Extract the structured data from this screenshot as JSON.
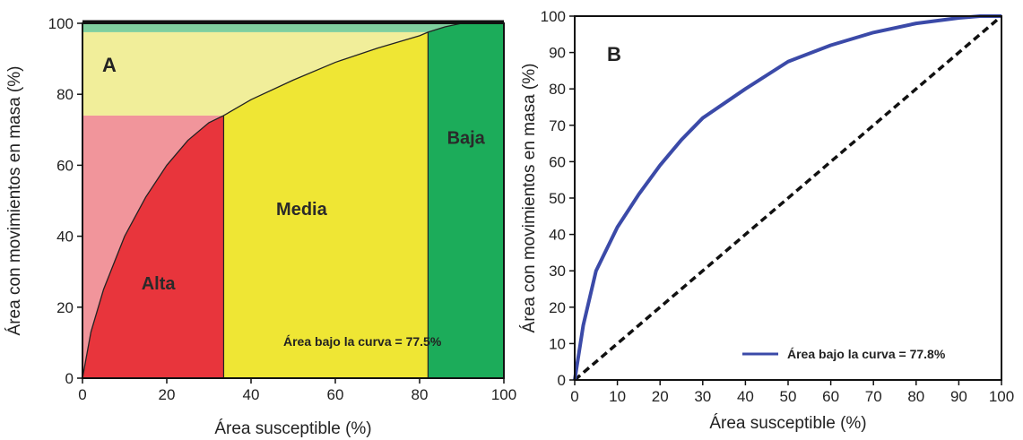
{
  "chart_data": [
    {
      "type": "area",
      "panel_label": "A",
      "xlabel": "Área susceptible (%)",
      "ylabel": "Área con movimientos en masa (%)",
      "xlim": [
        0,
        100
      ],
      "ylim": [
        0,
        100
      ],
      "xticks": [
        0,
        20,
        40,
        60,
        80,
        100
      ],
      "yticks": [
        0,
        20,
        40,
        60,
        80,
        100
      ],
      "curve": {
        "x": [
          0,
          2,
          5,
          10,
          15,
          20,
          25,
          30,
          33.5,
          40,
          50,
          60,
          70,
          80,
          82,
          86,
          90,
          100
        ],
        "y": [
          0,
          13,
          25,
          40,
          51,
          60,
          67,
          72,
          74,
          78.5,
          84,
          89,
          93,
          96.5,
          97.5,
          99,
          100,
          100
        ]
      },
      "zones": [
        {
          "name": "Alta",
          "x_start": 0,
          "x_end": 33.5,
          "y_top": 74,
          "color": "#e8353c",
          "band_color": "#f1959b"
        },
        {
          "name": "Media",
          "x_start": 33.5,
          "x_end": 82,
          "y_top": 97.5,
          "color": "#efe634",
          "band_color": "#f1ee9a"
        },
        {
          "name": "Baja",
          "x_start": 82,
          "x_end": 100,
          "y_top": 100,
          "color": "#1cac5a",
          "band_color": "#7fcf9e"
        }
      ],
      "annotation": "Área bajo la curva = 77.5%"
    },
    {
      "type": "line",
      "panel_label": "B",
      "xlabel": "Área susceptible (%)",
      "ylabel": "Área con movimientos en masa (%)",
      "xlim": [
        0,
        100
      ],
      "ylim": [
        0,
        100
      ],
      "xticks": [
        0,
        10,
        20,
        30,
        40,
        50,
        60,
        70,
        80,
        90,
        100
      ],
      "yticks": [
        0,
        10,
        20,
        30,
        40,
        50,
        60,
        70,
        80,
        90,
        100
      ],
      "series": [
        {
          "name": "Área bajo la curva = 77.8%",
          "color": "#3b4aa8",
          "x": [
            0,
            2,
            5,
            10,
            15,
            20,
            25,
            30,
            35,
            40,
            50,
            60,
            70,
            80,
            90,
            95,
            100
          ],
          "y": [
            0,
            15,
            30,
            42,
            51,
            59,
            66,
            72,
            76,
            80,
            87.5,
            92,
            95.5,
            98,
            99.5,
            100,
            100
          ]
        }
      ],
      "reference_line": {
        "x": [
          0,
          100
        ],
        "y": [
          0,
          100
        ],
        "style": "dashed",
        "color": "#111111"
      },
      "legend_placement": "bottom-right"
    }
  ]
}
